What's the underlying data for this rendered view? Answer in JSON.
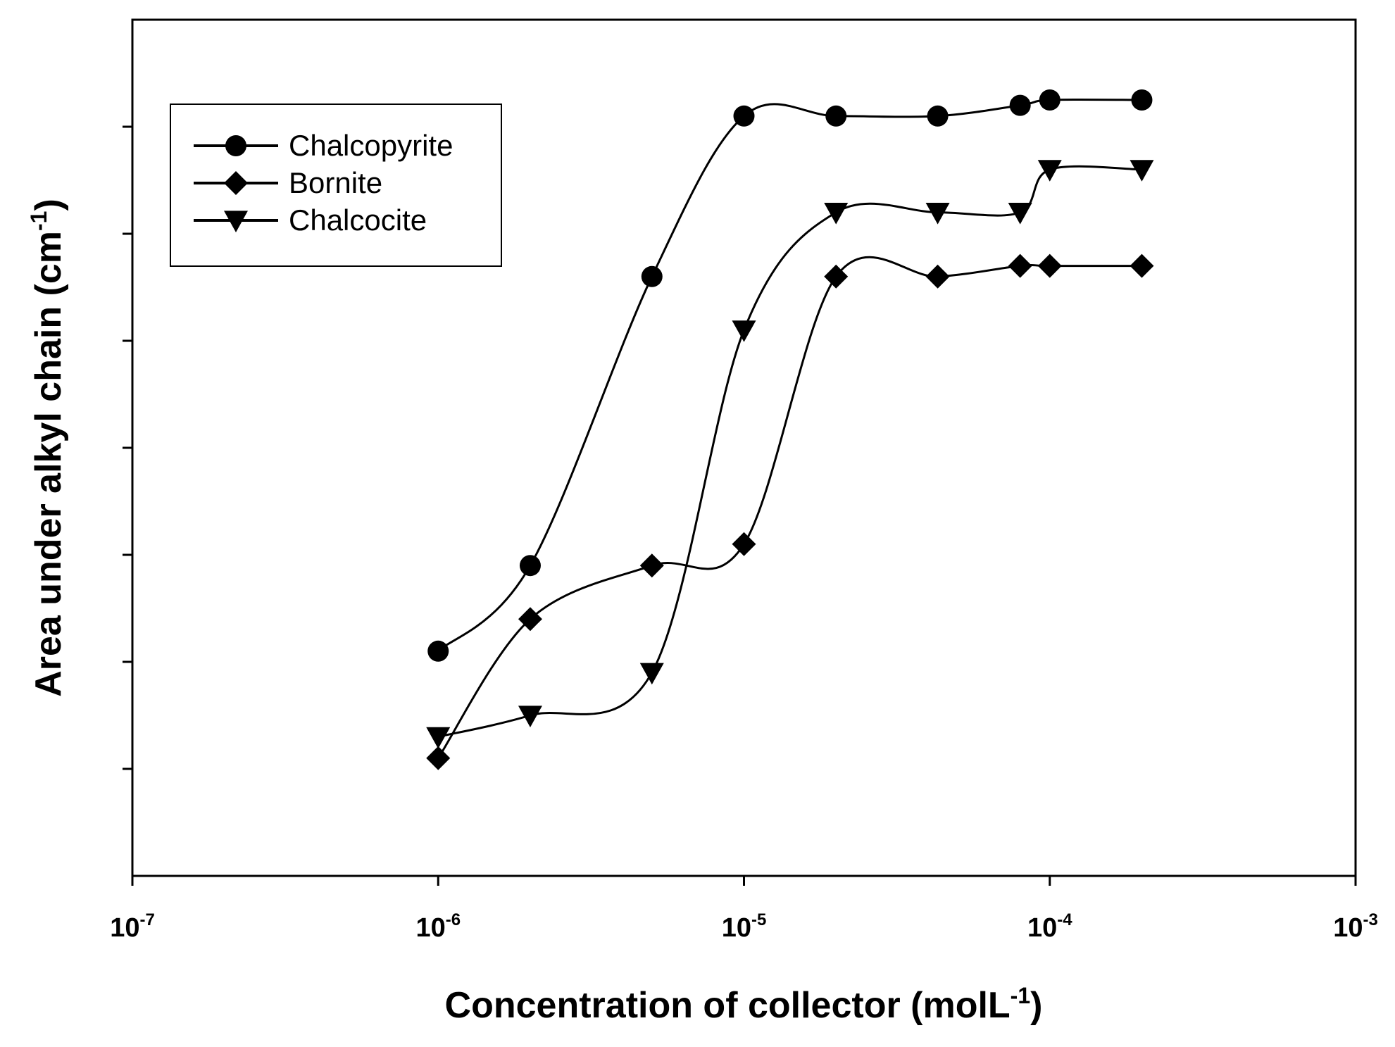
{
  "chart_data": {
    "type": "line",
    "xscale": "log",
    "xlim": [
      1e-07,
      0.001
    ],
    "ylim": [
      0,
      7
    ],
    "xlabel": {
      "main": "Concentration of collector (molL",
      "sup": "-1",
      "tail": ")"
    },
    "ylabel": {
      "main": "Area under alkyl chain (cm",
      "sup": "-1",
      "tail": ")"
    },
    "x_ticks": [
      {
        "value": 1e-07,
        "base": "10",
        "exp": "-7"
      },
      {
        "value": 1e-06,
        "base": "10",
        "exp": "-6"
      },
      {
        "value": 1e-05,
        "base": "10",
        "exp": "-5"
      },
      {
        "value": 0.0001,
        "base": "10",
        "exp": "-4"
      },
      {
        "value": 0.001,
        "base": "10",
        "exp": "-3"
      }
    ],
    "y_ticks": [
      1,
      2,
      3,
      4,
      5,
      6,
      7
    ],
    "y_tick_labels_shown": false,
    "grid": false,
    "legend_position": "top-left",
    "series": [
      {
        "name": "Chalcopyrite",
        "marker": "circle",
        "x": [
          1e-06,
          2e-06,
          5e-06,
          1e-05,
          2e-05,
          4.3e-05,
          8e-05,
          0.0001,
          0.0002
        ],
        "y": [
          2.1,
          2.9,
          5.6,
          7.1,
          7.1,
          7.1,
          7.2,
          7.25,
          7.25
        ]
      },
      {
        "name": "Bornite",
        "marker": "diamond",
        "x": [
          1e-06,
          2e-06,
          5e-06,
          1e-05,
          2e-05,
          4.3e-05,
          8e-05,
          0.0001,
          0.0002
        ],
        "y": [
          1.1,
          2.4,
          2.9,
          3.1,
          5.6,
          5.6,
          5.7,
          5.7,
          5.7
        ]
      },
      {
        "name": "Chalcocite",
        "marker": "triangle-down",
        "x": [
          1e-06,
          2e-06,
          5e-06,
          1e-05,
          2e-05,
          4.3e-05,
          8e-05,
          0.0001,
          0.0002
        ],
        "y": [
          1.3,
          1.5,
          1.9,
          5.1,
          6.2,
          6.2,
          6.2,
          6.6,
          6.6
        ]
      }
    ]
  },
  "colors": {
    "line": "#000000",
    "marker": "#000000",
    "background": "#ffffff"
  }
}
